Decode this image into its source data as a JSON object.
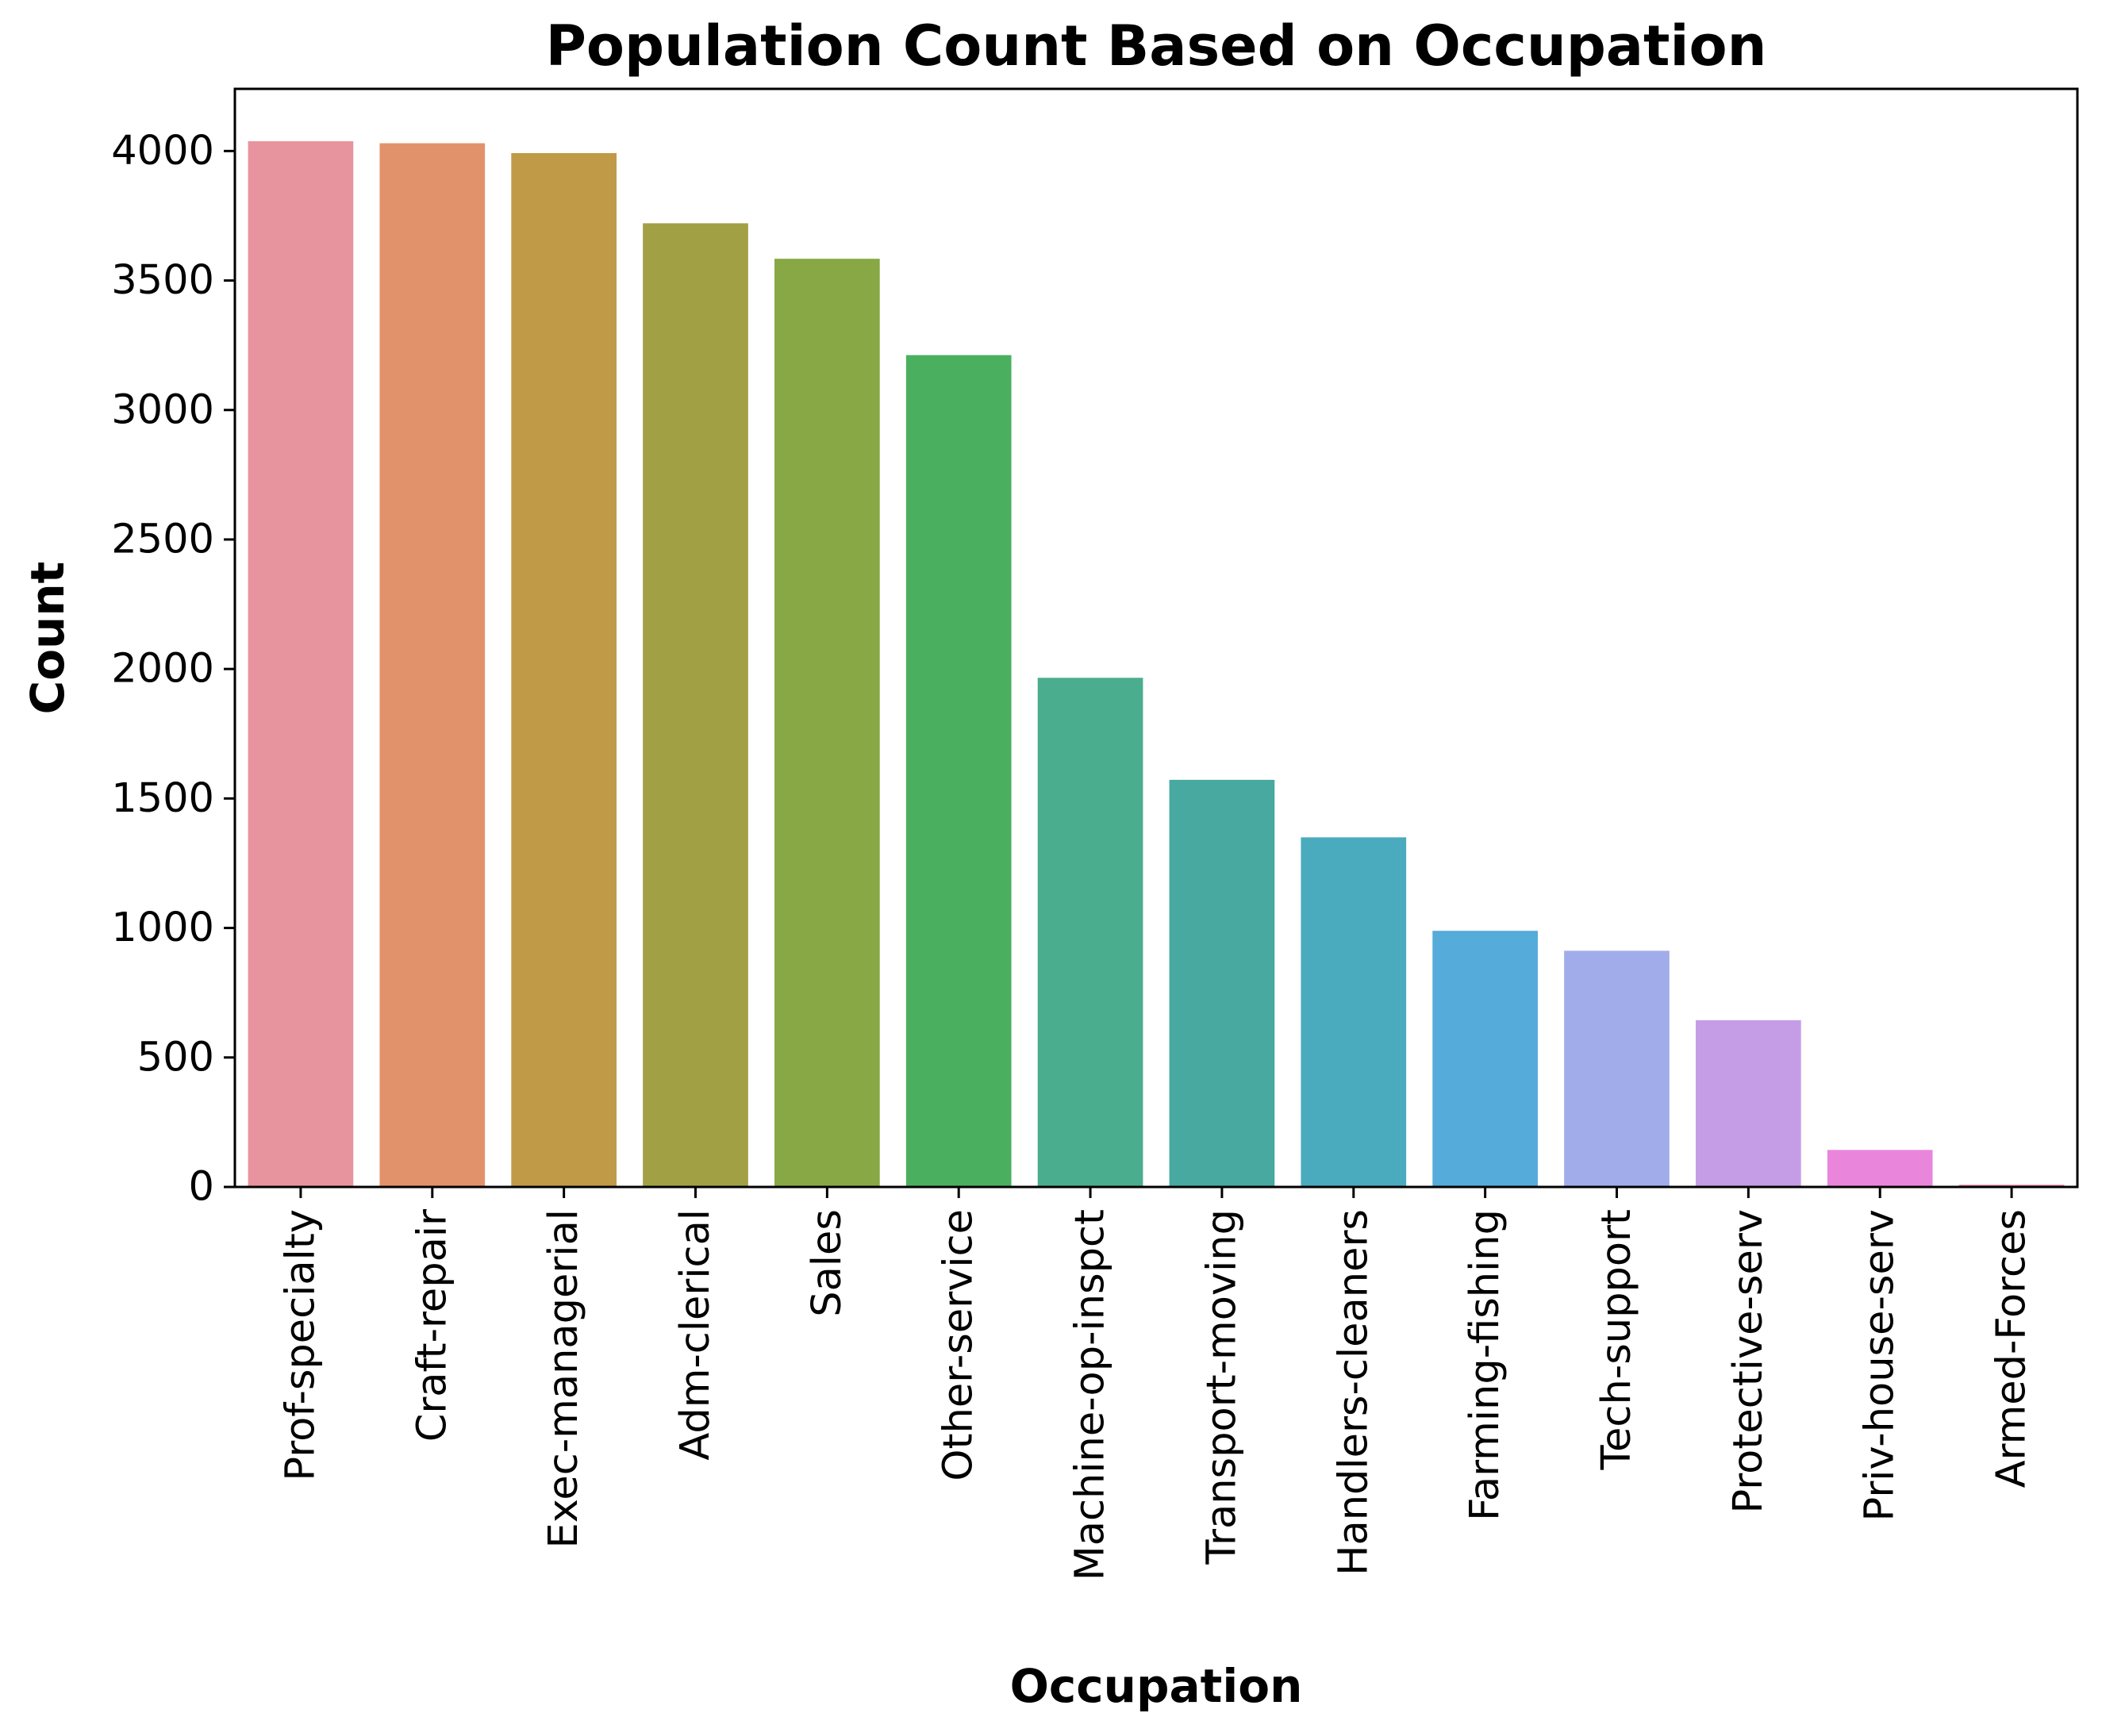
{
  "chart_data": {
    "type": "bar",
    "title": "Population Count Based on Occupation",
    "xlabel": "Occupation",
    "ylabel": "Count",
    "ylim": [
      0,
      4240
    ],
    "yticks": [
      "0",
      "500",
      "1000",
      "1500",
      "2000",
      "2500",
      "3000",
      "3500",
      "4000"
    ],
    "grid": false,
    "categories": [
      "Prof-specialty",
      "Craft-repair",
      "Exec-managerial",
      "Adm-clerical",
      "Sales",
      "Other-service",
      "Machine-op-inspct",
      "Transport-moving",
      "Handlers-cleaners",
      "Farming-fishing",
      "Tech-support",
      "Protective-serv",
      "Priv-house-serv",
      "Armed-Forces"
    ],
    "values": [
      4038,
      4030,
      3992,
      3721,
      3584,
      3212,
      1966,
      1572,
      1350,
      989,
      912,
      644,
      143,
      9
    ],
    "colors": [
      "#e8949f",
      "#e2926a",
      "#c09a47",
      "#a2a045",
      "#87a845",
      "#4ab060",
      "#4aad8e",
      "#47a9a0",
      "#4aabbe",
      "#55abd9",
      "#a1acea",
      "#c59de6",
      "#ea85dc",
      "#e993b8"
    ]
  }
}
